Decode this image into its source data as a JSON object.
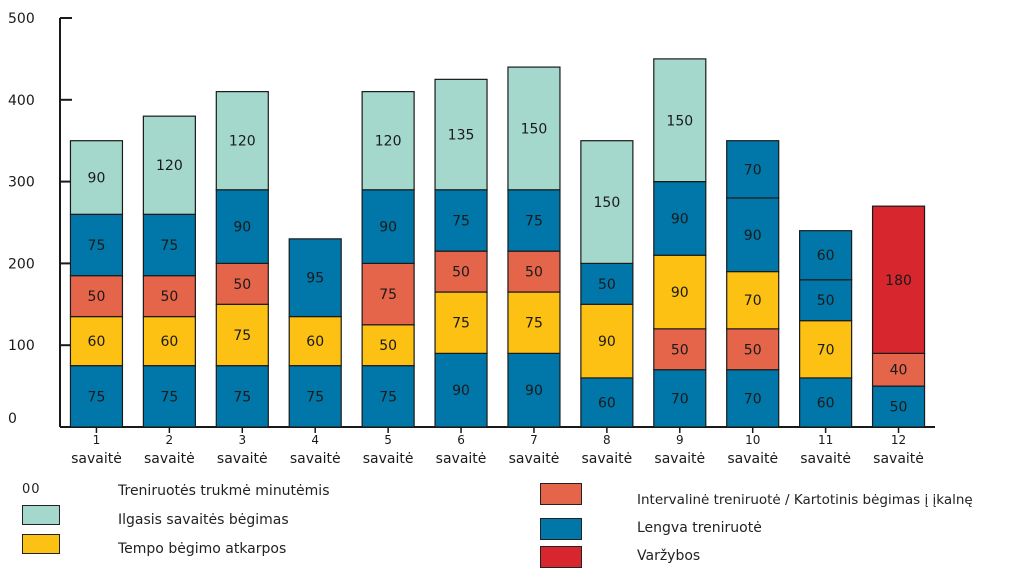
{
  "chart_data": {
    "type": "bar",
    "stacked": true,
    "categories": [
      {
        "number": "1",
        "label": "savaitė"
      },
      {
        "number": "2",
        "label": "savaitė"
      },
      {
        "number": "3",
        "label": "savaitė"
      },
      {
        "number": "4",
        "label": "savaitė"
      },
      {
        "number": "5",
        "label": "savaitė"
      },
      {
        "number": "6",
        "label": "savaitė"
      },
      {
        "number": "7",
        "label": "savaitė"
      },
      {
        "number": "8",
        "label": "savaitė"
      },
      {
        "number": "9",
        "label": "savaitė"
      },
      {
        "number": "10",
        "label": "savaitė"
      },
      {
        "number": "11",
        "label": "savaitė"
      },
      {
        "number": "12",
        "label": "savaitė"
      }
    ],
    "yticks": [
      "0",
      "100",
      "200",
      "300",
      "400",
      "500"
    ],
    "ylim": [
      0,
      500
    ],
    "grid": false,
    "colors": {
      "ilgasis": "#a5d8cd",
      "tempo": "#fcc112",
      "intervaline": "#e5654a",
      "lengva": "#0077a8",
      "varzybos": "#d8262e"
    },
    "bars": [
      [
        {
          "s": "lengva",
          "v": 75
        },
        {
          "s": "tempo",
          "v": 60
        },
        {
          "s": "intervaline",
          "v": 50
        },
        {
          "s": "lengva",
          "v": 75
        },
        {
          "s": "ilgasis",
          "v": 90
        }
      ],
      [
        {
          "s": "lengva",
          "v": 75
        },
        {
          "s": "tempo",
          "v": 60
        },
        {
          "s": "intervaline",
          "v": 50
        },
        {
          "s": "lengva",
          "v": 75
        },
        {
          "s": "ilgasis",
          "v": 120
        }
      ],
      [
        {
          "s": "lengva",
          "v": 75
        },
        {
          "s": "tempo",
          "v": 75
        },
        {
          "s": "intervaline",
          "v": 50
        },
        {
          "s": "lengva",
          "v": 90
        },
        {
          "s": "ilgasis",
          "v": 120
        }
      ],
      [
        {
          "s": "lengva",
          "v": 75
        },
        {
          "s": "tempo",
          "v": 60
        },
        {
          "s": "lengva",
          "v": 95
        }
      ],
      [
        {
          "s": "lengva",
          "v": 75
        },
        {
          "s": "tempo",
          "v": 50
        },
        {
          "s": "intervaline",
          "v": 75
        },
        {
          "s": "lengva",
          "v": 90
        },
        {
          "s": "ilgasis",
          "v": 120
        }
      ],
      [
        {
          "s": "lengva",
          "v": 90
        },
        {
          "s": "tempo",
          "v": 75
        },
        {
          "s": "intervaline",
          "v": 50
        },
        {
          "s": "lengva",
          "v": 75
        },
        {
          "s": "ilgasis",
          "v": 135
        }
      ],
      [
        {
          "s": "lengva",
          "v": 90
        },
        {
          "s": "tempo",
          "v": 75
        },
        {
          "s": "intervaline",
          "v": 50
        },
        {
          "s": "lengva",
          "v": 75
        },
        {
          "s": "ilgasis",
          "v": 150
        }
      ],
      [
        {
          "s": "lengva",
          "v": 60
        },
        {
          "s": "tempo",
          "v": 90
        },
        {
          "s": "lengva",
          "v": 50
        },
        {
          "s": "ilgasis",
          "v": 150
        }
      ],
      [
        {
          "s": "lengva",
          "v": 70
        },
        {
          "s": "intervaline",
          "v": 50
        },
        {
          "s": "tempo",
          "v": 90
        },
        {
          "s": "lengva",
          "v": 90
        },
        {
          "s": "ilgasis",
          "v": 150
        }
      ],
      [
        {
          "s": "lengva",
          "v": 70
        },
        {
          "s": "intervaline",
          "v": 50
        },
        {
          "s": "tempo",
          "v": 70
        },
        {
          "s": "lengva",
          "v": 90
        },
        {
          "s": "lengva",
          "v": 70
        }
      ],
      [
        {
          "s": "lengva",
          "v": 60
        },
        {
          "s": "tempo",
          "v": 70
        },
        {
          "s": "lengva",
          "v": 50
        },
        {
          "s": "lengva",
          "v": 60
        }
      ],
      [
        {
          "s": "lengva",
          "v": 50
        },
        {
          "s": "intervaline",
          "v": 40
        },
        {
          "s": "varzybos",
          "v": 180
        }
      ]
    ]
  },
  "legend": {
    "unit_code": "00",
    "unit_text": "Treniruotės trukmė minutėmis",
    "items": [
      {
        "key": "ilgasis",
        "label": "Ilgasis savaitės bėgimas"
      },
      {
        "key": "tempo",
        "label": "Tempo bėgimo atkarpos"
      },
      {
        "key": "intervaline",
        "label": "Intervalinė treniruotė / Kartotinis bėgimas į įkalnę"
      },
      {
        "key": "lengva",
        "label": "Lengva treniruotė"
      },
      {
        "key": "varzybos",
        "label": "Varžybos"
      }
    ]
  }
}
